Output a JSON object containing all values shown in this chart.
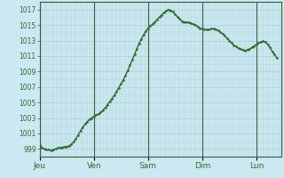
{
  "background_color": "#cce8f0",
  "plot_bg_color": "#cce8f0",
  "line_color": "#2d6e2d",
  "grid_color_minor": "#b8d8e0",
  "grid_color_major": "#a0c8d4",
  "tick_color": "#2d6e2d",
  "spine_color": "#3a5a3a",
  "ylim": [
    998,
    1018
  ],
  "yticks": [
    999,
    1001,
    1003,
    1005,
    1007,
    1009,
    1011,
    1013,
    1015,
    1017
  ],
  "day_labels": [
    "Jeu",
    "Ven",
    "Sam",
    "Dim",
    "Lun"
  ],
  "day_positions": [
    0,
    24,
    48,
    72,
    96
  ],
  "total_hours": 108,
  "pressure_data": [
    999.5,
    999.2,
    999.0,
    998.9,
    998.9,
    998.8,
    998.9,
    999.0,
    999.1,
    999.2,
    999.2,
    999.3,
    999.3,
    999.4,
    999.6,
    999.9,
    1000.3,
    1000.8,
    1001.3,
    1001.8,
    1002.2,
    1002.5,
    1002.8,
    1003.0,
    1003.2,
    1003.4,
    1003.5,
    1003.7,
    1004.0,
    1004.3,
    1004.7,
    1005.1,
    1005.5,
    1005.9,
    1006.4,
    1006.9,
    1007.4,
    1007.9,
    1008.5,
    1009.1,
    1009.8,
    1010.5,
    1011.2,
    1011.9,
    1012.6,
    1013.2,
    1013.7,
    1014.2,
    1014.6,
    1014.9,
    1015.1,
    1015.4,
    1015.7,
    1016.0,
    1016.3,
    1016.6,
    1016.8,
    1017.0,
    1016.9,
    1016.7,
    1016.4,
    1016.1,
    1015.8,
    1015.5,
    1015.4,
    1015.4,
    1015.3,
    1015.2,
    1015.1,
    1015.0,
    1014.8,
    1014.6,
    1014.5,
    1014.4,
    1014.4,
    1014.4,
    1014.5,
    1014.5,
    1014.4,
    1014.3,
    1014.1,
    1013.9,
    1013.6,
    1013.3,
    1013.0,
    1012.7,
    1012.4,
    1012.2,
    1012.0,
    1011.9,
    1011.8,
    1011.7,
    1011.8,
    1011.9,
    1012.1,
    1012.3,
    1012.5,
    1012.7,
    1012.8,
    1012.9,
    1012.8,
    1012.5,
    1012.1,
    1011.6,
    1011.2,
    1010.8
  ]
}
